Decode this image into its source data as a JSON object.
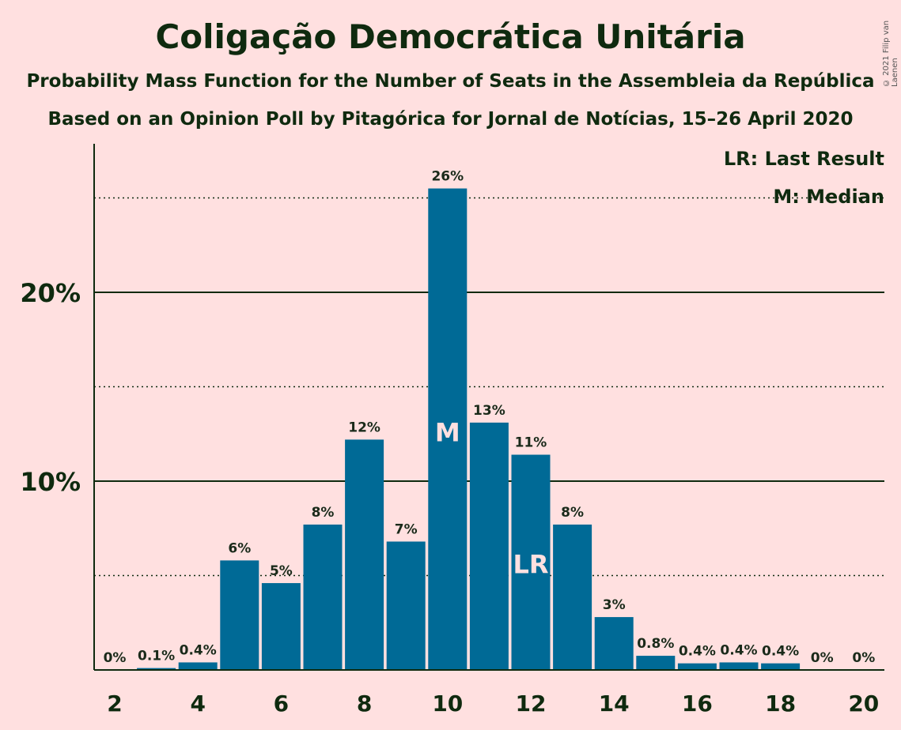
{
  "chart_data": {
    "type": "bar",
    "title": "Coligação Democrática Unitária",
    "subtitle": "Probability Mass Function for the Number of Seats in the Assembleia da República",
    "subtitle2": "Based on an Opinion Poll by Pitagórica for Jornal de Notícias, 15–26 April 2020",
    "copyright": "© 2021 Filip van Laenen",
    "categories": [
      2,
      3,
      4,
      5,
      6,
      7,
      8,
      9,
      10,
      11,
      12,
      13,
      14,
      15,
      16,
      17,
      18,
      19,
      20
    ],
    "values": [
      0,
      0.1,
      0.4,
      5.8,
      4.6,
      7.7,
      12.2,
      6.8,
      25.5,
      13.1,
      11.4,
      7.7,
      2.8,
      0.75,
      0.35,
      0.4,
      0.35,
      0,
      0
    ],
    "labels": [
      "0%",
      "0.1%",
      "0.4%",
      "6%",
      "5%",
      "8%",
      "12%",
      "7%",
      "26%",
      "13%",
      "11%",
      "8%",
      "3%",
      "0.8%",
      "0.4%",
      "0.4%",
      "0.4%",
      "0%",
      "0%"
    ],
    "x_ticks": [
      "2",
      "4",
      "6",
      "8",
      "10",
      "12",
      "14",
      "16",
      "18",
      "20"
    ],
    "x_tick_values": [
      2,
      4,
      6,
      8,
      10,
      12,
      14,
      16,
      18,
      20
    ],
    "y_ticks": [
      "10%",
      "20%"
    ],
    "y_tick_values": [
      10,
      20
    ],
    "ylim": [
      0,
      27.8
    ],
    "gridlines_solid": [
      10,
      20
    ],
    "gridlines_dotted": [
      5,
      15,
      25
    ],
    "median_seat": 10,
    "median_marker": "M",
    "last_result_seat": 12,
    "last_result_marker": "LR",
    "legend": [
      "LR: Last Result",
      "M: Median"
    ],
    "legend_position": "top-right",
    "bar_color": "#006a96"
  }
}
